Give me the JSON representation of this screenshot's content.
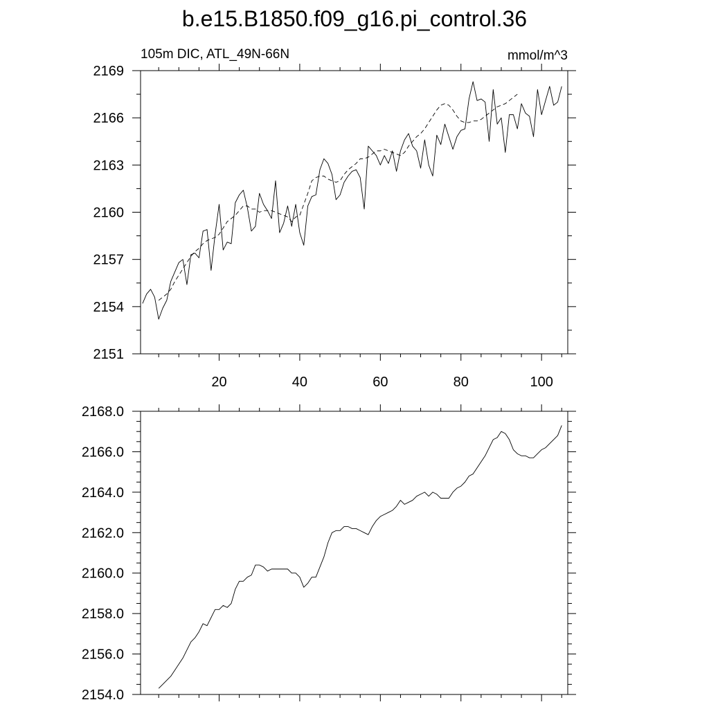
{
  "figure": {
    "title": "b.e15.B1850.f09_g16.pi_control.36",
    "subtitle_left": "105m DIC, ATL_49N-66N",
    "subtitle_right": "mmol/m^3",
    "colors": {
      "line": "#000000",
      "axes": "#000000",
      "background": "#ffffff"
    }
  },
  "chart_data": [
    {
      "type": "line",
      "title": "b.e15.B1850.f09_g16.pi_control.36",
      "subtitle_left": "105m DIC, ATL_49N-66N",
      "subtitle_right": "mmol/m^3",
      "xlabel": "",
      "ylabel": "",
      "xlim": [
        0.5,
        106.5
      ],
      "ylim": [
        2151,
        2169
      ],
      "x_ticks": [
        20,
        40,
        60,
        80,
        100
      ],
      "x_tick_labels": [
        "20",
        "40",
        "60",
        "80",
        "100"
      ],
      "y_ticks": [
        2151,
        2154,
        2157,
        2160,
        2163,
        2166,
        2169
      ],
      "y_tick_labels": [
        "2151",
        "2154",
        "2157",
        "2160",
        "2163",
        "2166",
        "2169"
      ],
      "grid": false,
      "series": [
        {
          "style": "solid",
          "x_start": 1,
          "values": [
            2154.2,
            2154.8,
            2155.1,
            2154.6,
            2153.2,
            2153.9,
            2154.4,
            2155.6,
            2156.2,
            2156.8,
            2157.0,
            2155.4,
            2157.3,
            2157.4,
            2157.1,
            2158.8,
            2158.9,
            2156.3,
            2158.6,
            2160.5,
            2157.6,
            2158.1,
            2158.0,
            2160.6,
            2161.1,
            2161.4,
            2160.3,
            2158.8,
            2159.1,
            2161.2,
            2160.5,
            2160.1,
            2159.6,
            2162.0,
            2158.7,
            2159.3,
            2160.4,
            2159.1,
            2160.5,
            2158.7,
            2157.9,
            2160.4,
            2161.0,
            2161.1,
            2162.7,
            2163.4,
            2163.1,
            2162.4,
            2160.8,
            2161.1,
            2161.9,
            2162.3,
            2162.6,
            2162.7,
            2162.2,
            2160.2,
            2164.2,
            2163.9,
            2163.6,
            2163.0,
            2163.6,
            2163.1,
            2163.9,
            2162.6,
            2163.9,
            2164.6,
            2165.0,
            2164.2,
            2163.9,
            2162.8,
            2164.6,
            2163.0,
            2162.3,
            2164.9,
            2164.3,
            2165.6,
            2164.8,
            2164.0,
            2164.8,
            2165.2,
            2165.3,
            2167.2,
            2168.3,
            2167.1,
            2167.2,
            2167.0,
            2164.5,
            2167.8,
            2165.6,
            2166.0,
            2163.8,
            2166.2,
            2166.2,
            2165.3,
            2166.9,
            2166.3,
            2166.1,
            2164.8,
            2167.8,
            2166.2,
            2167.1,
            2168.0,
            2166.8,
            2167.0,
            2168.0
          ]
        },
        {
          "style": "dashed",
          "x_start": 5,
          "values": [
            2154.4,
            2154.6,
            2154.8,
            2155.1,
            2155.6,
            2156.0,
            2156.4,
            2156.8,
            2157.2,
            2157.5,
            2157.7,
            2158.0,
            2158.2,
            2158.3,
            2158.4,
            2158.6,
            2159.0,
            2159.4,
            2159.6,
            2159.8,
            2160.1,
            2160.4,
            2160.4,
            2160.2,
            2160.2,
            2160.0,
            2160.1,
            2160.1,
            2160.1,
            2160.0,
            2159.9,
            2159.8,
            2159.7,
            2159.4,
            2159.7,
            2159.8,
            2160.5,
            2161.2,
            2162.0,
            2162.2,
            2162.3,
            2162.3,
            2162.1,
            2162.0,
            2161.9,
            2162.0,
            2162.4,
            2162.7,
            2162.9,
            2163.1,
            2163.4,
            2163.4,
            2163.5,
            2163.7,
            2163.9,
            2163.9,
            2164.0,
            2163.9,
            2163.8,
            2163.7,
            2163.6,
            2163.8,
            2164.2,
            2164.5,
            2164.8,
            2165.0,
            2165.3,
            2165.7,
            2166.1,
            2166.5,
            2166.8,
            2166.9,
            2166.8,
            2166.5,
            2166.1,
            2165.8,
            2165.7,
            2165.7,
            2165.8,
            2165.8,
            2165.9,
            2166.1,
            2166.3,
            2166.5,
            2166.7,
            2166.8,
            2166.9,
            2167.1,
            2167.3,
            2167.5
          ]
        }
      ]
    },
    {
      "type": "line",
      "title": "",
      "xlabel": "",
      "ylabel": "",
      "xlim": [
        0.5,
        106.5
      ],
      "ylim": [
        2154,
        2168
      ],
      "x_ticks": [
        20,
        40,
        60,
        80,
        100
      ],
      "x_tick_labels": [],
      "y_ticks": [
        2154,
        2156,
        2158,
        2160,
        2162,
        2164,
        2166,
        2168
      ],
      "y_tick_labels": [
        "2154.0",
        "2156.0",
        "2158.0",
        "2160.0",
        "2162.0",
        "2164.0",
        "2166.0",
        "2168.0"
      ],
      "grid": false,
      "series": [
        {
          "style": "solid",
          "x_start": 5,
          "values": [
            2154.3,
            2154.5,
            2154.7,
            2154.9,
            2155.2,
            2155.5,
            2155.8,
            2156.2,
            2156.6,
            2156.8,
            2157.1,
            2157.5,
            2157.4,
            2157.8,
            2158.2,
            2158.2,
            2158.4,
            2158.3,
            2158.5,
            2159.2,
            2159.6,
            2159.6,
            2159.8,
            2159.9,
            2160.4,
            2160.4,
            2160.3,
            2160.1,
            2160.2,
            2160.2,
            2160.2,
            2160.2,
            2160.2,
            2160.0,
            2160.0,
            2159.8,
            2159.3,
            2159.5,
            2159.8,
            2159.8,
            2160.3,
            2160.8,
            2161.5,
            2162.0,
            2162.1,
            2162.1,
            2162.3,
            2162.3,
            2162.2,
            2162.2,
            2162.1,
            2162.0,
            2161.9,
            2162.3,
            2162.6,
            2162.8,
            2162.9,
            2163.0,
            2163.1,
            2163.3,
            2163.6,
            2163.4,
            2163.5,
            2163.6,
            2163.8,
            2163.9,
            2164.0,
            2163.8,
            2164.0,
            2163.9,
            2163.7,
            2163.7,
            2163.7,
            2164.0,
            2164.2,
            2164.3,
            2164.5,
            2164.8,
            2164.9,
            2165.2,
            2165.5,
            2165.8,
            2166.2,
            2166.6,
            2166.7,
            2167.0,
            2166.9,
            2166.6,
            2166.1,
            2165.9,
            2165.8,
            2165.8,
            2165.7,
            2165.7,
            2165.9,
            2166.1,
            2166.2,
            2166.4,
            2166.6,
            2166.8,
            2167.3
          ]
        }
      ]
    }
  ]
}
